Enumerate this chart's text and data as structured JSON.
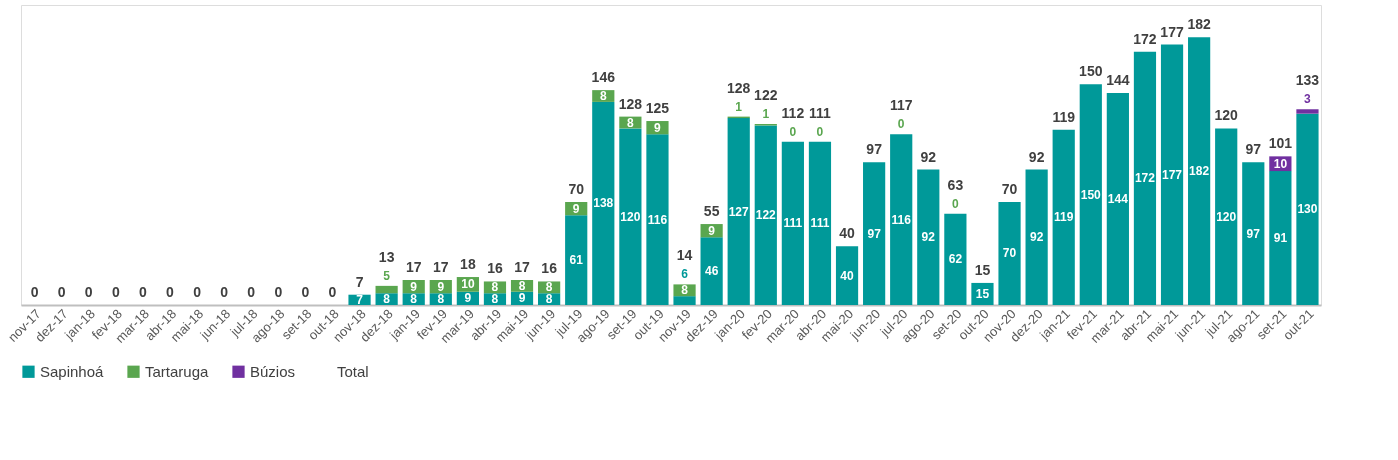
{
  "chart_data": {
    "type": "bar",
    "stacked": true,
    "categories": [
      "nov-17",
      "dez-17",
      "jan-18",
      "fev-18",
      "mar-18",
      "abr-18",
      "mai-18",
      "jun-18",
      "jul-18",
      "ago-18",
      "set-18",
      "out-18",
      "nov-18",
      "dez-18",
      "jan-19",
      "fev-19",
      "mar-19",
      "abr-19",
      "mai-19",
      "jun-19",
      "jul-19",
      "ago-19",
      "set-19",
      "out-19",
      "nov-19",
      "dez-19",
      "jan-20",
      "fev-20",
      "mar-20",
      "abr-20",
      "mai-20",
      "jun-20",
      "jul-20",
      "ago-20",
      "set-20",
      "out-20",
      "nov-20",
      "dez-20",
      "jan-21",
      "fev-21",
      "mar-21",
      "abr-21",
      "mai-21",
      "jun-21",
      "jul-21",
      "ago-21",
      "set-21",
      "out-21"
    ],
    "series": [
      {
        "name": "Sapinhoá",
        "color": "#009999",
        "values": [
          0,
          0,
          0,
          0,
          0,
          0,
          0,
          0,
          0,
          0,
          0,
          0,
          7,
          8,
          8,
          8,
          9,
          8,
          9,
          8,
          61,
          138,
          120,
          116,
          6,
          46,
          127,
          122,
          111,
          111,
          40,
          97,
          116,
          92,
          62,
          15,
          70,
          92,
          119,
          150,
          144,
          172,
          177,
          182,
          120,
          97,
          91,
          130
        ],
        "value_labels": [
          null,
          null,
          null,
          null,
          null,
          null,
          null,
          null,
          null,
          null,
          null,
          null,
          "7",
          "8",
          "8",
          "8",
          "9",
          "8",
          "9",
          "8",
          "61",
          "138",
          "120",
          "116",
          "6",
          "46",
          "127",
          "122",
          "111",
          "111",
          "40",
          "97",
          "116",
          "92",
          "62",
          "15",
          "70",
          "92",
          "119",
          "150",
          "144",
          "172",
          "177",
          "182",
          "120",
          "97",
          "91",
          "130"
        ]
      },
      {
        "name": "Tartaruga",
        "color": "#5aa64f",
        "values": [
          null,
          null,
          null,
          null,
          null,
          null,
          null,
          null,
          null,
          null,
          null,
          null,
          null,
          5,
          9,
          9,
          10,
          8,
          8,
          8,
          9,
          8,
          8,
          9,
          8,
          9,
          1,
          1,
          0,
          0,
          null,
          null,
          0,
          null,
          0,
          null,
          null,
          null,
          null,
          null,
          null,
          null,
          null,
          null,
          null,
          null,
          null,
          null
        ],
        "value_labels": [
          null,
          null,
          null,
          null,
          null,
          null,
          null,
          null,
          null,
          null,
          null,
          null,
          null,
          "5",
          "9",
          "9",
          "10",
          "8",
          "8",
          "8",
          "9",
          "8",
          "8",
          "9",
          "8",
          "9",
          "1",
          "1",
          "0",
          "0",
          null,
          null,
          "0",
          null,
          "0",
          null,
          null,
          null,
          null,
          null,
          null,
          null,
          null,
          null,
          null,
          null,
          null,
          null
        ]
      },
      {
        "name": "Búzios",
        "color": "#7030a0",
        "values": [
          null,
          null,
          null,
          null,
          null,
          null,
          null,
          null,
          null,
          null,
          null,
          null,
          null,
          null,
          null,
          null,
          null,
          null,
          null,
          null,
          null,
          null,
          null,
          null,
          null,
          null,
          null,
          null,
          null,
          null,
          null,
          null,
          null,
          null,
          null,
          null,
          null,
          null,
          null,
          null,
          null,
          null,
          null,
          null,
          null,
          null,
          10,
          3
        ],
        "value_labels": [
          null,
          null,
          null,
          null,
          null,
          null,
          null,
          null,
          null,
          null,
          null,
          null,
          null,
          null,
          null,
          null,
          null,
          null,
          null,
          null,
          null,
          null,
          null,
          null,
          null,
          null,
          null,
          null,
          null,
          null,
          null,
          null,
          null,
          null,
          null,
          null,
          null,
          null,
          null,
          null,
          null,
          null,
          null,
          null,
          null,
          null,
          "10",
          "3"
        ]
      }
    ],
    "totals": [
      "0",
      "0",
      "0",
      "0",
      "0",
      "0",
      "0",
      "0",
      "0",
      "0",
      "0",
      "0",
      "7",
      "13",
      "17",
      "17",
      "18",
      "16",
      "17",
      "16",
      "70",
      "146",
      "128",
      "125",
      "14",
      "55",
      "128",
      "122",
      "112",
      "111",
      "40",
      "97",
      "117",
      "92",
      "63",
      "15",
      "70",
      "92",
      "119",
      "150",
      "144",
      "172",
      "177",
      "182",
      "120",
      "97",
      "101",
      "133"
    ],
    "annotations": [
      "Total"
    ],
    "legend": "bottom"
  }
}
